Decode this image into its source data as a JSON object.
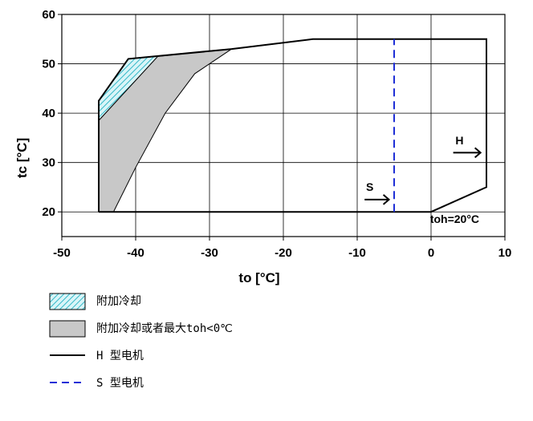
{
  "chart_data": {
    "type": "area",
    "xlabel": "to [°C]",
    "ylabel": "tc [°C]",
    "xlim": [
      -50,
      10
    ],
    "ylim": [
      15,
      60
    ],
    "xticks": [
      -50,
      -40,
      -30,
      -20,
      -10,
      0,
      10
    ],
    "yticks": [
      20,
      30,
      40,
      50,
      60
    ],
    "grid": true,
    "legend_position": "below",
    "series": [
      {
        "name": "H 型电机",
        "style": "solid",
        "color": "#000000",
        "points": [
          [
            -45,
            20
          ],
          [
            0,
            20
          ],
          [
            7.5,
            25
          ],
          [
            7.5,
            55
          ],
          [
            -16,
            55
          ],
          [
            -27,
            53
          ],
          [
            -41,
            51
          ],
          [
            -45,
            42.5
          ],
          [
            -45,
            20
          ]
        ]
      },
      {
        "name": "S 型电机",
        "style": "dashed",
        "color": "#1f2fd6",
        "points": [
          [
            -5,
            20
          ],
          [
            -5,
            55
          ]
        ]
      },
      {
        "name": "附加冷却",
        "fill": "hatched-cyan",
        "points": [
          [
            -45,
            42.5
          ],
          [
            -41,
            51
          ],
          [
            -37,
            51.5
          ],
          [
            -45,
            38.5
          ]
        ]
      },
      {
        "name": "附加冷却或者最大toh<0℃",
        "fill": "#c8c8c8",
        "points": [
          [
            -45,
            20
          ],
          [
            -43,
            20
          ],
          [
            -40,
            29
          ],
          [
            -36,
            40
          ],
          [
            -32,
            48
          ],
          [
            -27,
            53
          ],
          [
            -37,
            51.5
          ],
          [
            -45,
            38.5
          ]
        ]
      }
    ],
    "annotations": [
      {
        "text": "toh=20°C",
        "x": 3.2,
        "y": 17.8
      },
      {
        "text": "H",
        "x": 3.3,
        "y": 33.7,
        "arrow": [
          [
            3,
            32
          ],
          [
            6.7,
            32
          ]
        ]
      },
      {
        "text": "S",
        "x": -8.8,
        "y": 24.3,
        "arrow": [
          [
            -9,
            22.5
          ],
          [
            -5.7,
            22.5
          ]
        ]
      }
    ]
  },
  "legend": [
    {
      "label": "附加冷却",
      "swatch": "hatched-cyan"
    },
    {
      "label": "附加冷却或者最大toh<0℃",
      "swatch": "gray"
    },
    {
      "label": "H 型电机",
      "swatch": "solid-black"
    },
    {
      "label": "S 型电机",
      "swatch": "dashed-blue"
    }
  ],
  "colors": {
    "envelope": "#000000",
    "s_line": "#1f2fd6",
    "gray_fill": "#c8c8c8",
    "hatch": "#33b8c8",
    "hatch_bg": "#d9f5f8",
    "grid": "#000000"
  }
}
